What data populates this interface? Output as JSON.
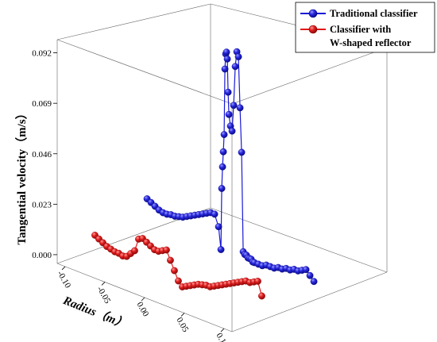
{
  "chart_data": {
    "type": "scatter",
    "title": "",
    "ylabel": "Tangential velocity（m/s）",
    "xlabel": "Radius（m）",
    "y_ticks": [
      "0.000",
      "0.023",
      "0.046",
      "0.069",
      "0.092"
    ],
    "x_ticks": [
      "-0.10",
      "-0.05",
      "0.00",
      "0.05",
      "0.10"
    ],
    "ylim": [
      -0.004,
      0.098
    ],
    "xlim": [
      -0.11,
      0.11
    ],
    "grid": false,
    "legend_position": "top-right",
    "series": [
      {
        "name": "Traditional classifier",
        "color": "#1a1ad6",
        "x": [
          -0.105,
          -0.1,
          -0.095,
          -0.09,
          -0.085,
          -0.08,
          -0.075,
          -0.07,
          -0.065,
          -0.06,
          -0.055,
          -0.05,
          -0.045,
          -0.04,
          -0.035,
          -0.03,
          -0.025,
          -0.02,
          -0.015,
          -0.012,
          -0.011,
          -0.01,
          -0.009,
          -0.008,
          -0.007,
          -0.006,
          -0.005,
          -0.004,
          -0.003,
          -0.002,
          0.0,
          0.002,
          0.004,
          0.006,
          0.008,
          0.01,
          0.012,
          0.014,
          0.016,
          0.018,
          0.02,
          0.022,
          0.024,
          0.026,
          0.028,
          0.03,
          0.035,
          0.04,
          0.045,
          0.05,
          0.055,
          0.06,
          0.065,
          0.07,
          0.075,
          0.08,
          0.085,
          0.09,
          0.095,
          0.1,
          0.105
        ],
        "y": [
          0.012,
          0.011,
          0.01,
          0.009,
          0.0085,
          0.0085,
          0.009,
          0.009,
          0.0095,
          0.01,
          0.011,
          0.012,
          0.013,
          0.014,
          0.015,
          0.016,
          0.017,
          0.017,
          0.012,
          0.002,
          0.03,
          0.04,
          0.047,
          0.055,
          0.085,
          0.092,
          0.093,
          0.09,
          0.075,
          0.065,
          0.06,
          0.058,
          0.07,
          0.088,
          0.095,
          0.093,
          0.07,
          0.05,
          0.005,
          0.004,
          0.004,
          0.003,
          0.003,
          0.003,
          0.002,
          0.002,
          0.002,
          0.002,
          0.003,
          0.003,
          0.003,
          0.004,
          0.004,
          0.005,
          0.005,
          0.006,
          0.006,
          0.007,
          0.008,
          0.006,
          0.004
        ]
      },
      {
        "name": "Classifier with\nW-shaped reflector",
        "color": "#e01818",
        "x": [
          -0.105,
          -0.1,
          -0.095,
          -0.09,
          -0.085,
          -0.08,
          -0.075,
          -0.07,
          -0.065,
          -0.06,
          -0.055,
          -0.05,
          -0.045,
          -0.04,
          -0.035,
          -0.03,
          -0.025,
          -0.02,
          -0.015,
          -0.01,
          -0.005,
          0.0,
          0.005,
          0.01,
          0.015,
          0.02,
          0.025,
          0.03,
          0.035,
          0.04,
          0.045,
          0.05,
          0.055,
          0.06,
          0.065,
          0.07,
          0.075,
          0.08,
          0.085,
          0.09,
          0.095,
          0.1,
          0.105
        ],
        "y": [
          0.004,
          0.003,
          0.002,
          0.001,
          0.0005,
          0.0,
          0.0,
          -0.0005,
          0.0,
          0.002,
          0.004,
          0.01,
          0.011,
          0.01,
          0.009,
          0.008,
          0.008,
          0.009,
          0.01,
          0.006,
          0.002,
          -0.002,
          -0.004,
          -0.003,
          -0.002,
          -0.001,
          0.0,
          0.0005,
          0.001,
          0.001,
          0.002,
          0.003,
          0.004,
          0.005,
          0.006,
          0.007,
          0.008,
          0.009,
          0.01,
          0.01,
          0.011,
          0.012,
          0.006
        ]
      }
    ]
  }
}
